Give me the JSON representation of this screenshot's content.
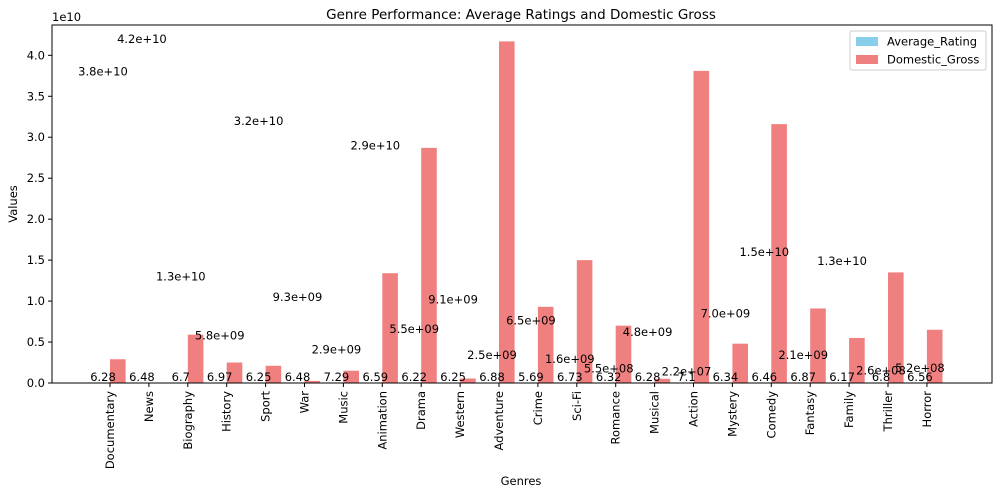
{
  "chart_data": {
    "type": "bar",
    "title": "Genre Performance: Average Ratings and Domestic Gross",
    "xlabel": "Genres",
    "ylabel": "Values",
    "y_offset_label": "1e10",
    "ylim": [
      0,
      43700000000.0
    ],
    "yticks": [
      "0.0",
      "0.5",
      "1.0",
      "1.5",
      "2.0",
      "2.5",
      "3.0",
      "3.5",
      "4.0"
    ],
    "legend_position": "top-right",
    "categories": [
      "Documentary",
      "News",
      "Biography",
      "History",
      "Sport",
      "War",
      "Music",
      "Animation",
      "Drama",
      "Western",
      "Adventure",
      "Crime",
      "Sci-Fi",
      "Romance",
      "Musical",
      "Action",
      "Mystery",
      "Comedy",
      "Fantasy",
      "Family",
      "Thriller",
      "Horror"
    ],
    "series": [
      {
        "name": "Average_Rating",
        "color": "#87ceeb",
        "values": [
          6.28,
          6.48,
          6.7,
          6.97,
          6.25,
          6.48,
          7.29,
          6.59,
          6.22,
          6.25,
          6.88,
          5.69,
          6.73,
          6.32,
          6.28,
          7.1,
          6.34,
          6.46,
          6.87,
          6.17,
          6.8,
          6.56
        ],
        "labels": [
          "6.28",
          "6.48",
          "6.7",
          "6.97",
          "6.25",
          "6.48",
          "7.29",
          "6.59",
          "6.22",
          "6.25",
          "6.88",
          "5.69",
          "6.73",
          "6.32",
          "6.28",
          "7.1",
          "6.34",
          "6.46",
          "6.87",
          "6.17",
          "6.8",
          "6.56"
        ]
      },
      {
        "name": "Domestic_Gross",
        "color": "#f08080",
        "values": [
          2900000000.0,
          10000000.0,
          5900000000.0,
          2500000000.0,
          2100000000.0,
          260000000.0,
          1500000000.0,
          13400000000.0,
          28700000000.0,
          550000000.0,
          41700000000.0,
          9300000000.0,
          15000000000.0,
          7000000000.0,
          520000000.0,
          38100000000.0,
          4800000000.0,
          31600000000.0,
          9100000000.0,
          5500000000.0,
          13500000000.0,
          6500000000.0
        ]
      }
    ],
    "annotations": [
      {
        "text": "3.8e+10",
        "x": 0,
        "y": 38000000000.0
      },
      {
        "text": "4.2e+10",
        "x": 1,
        "y": 42000000000.0
      },
      {
        "text": "1.3e+10",
        "x": 2,
        "y": 13000000000.0
      },
      {
        "text": "5.8e+09",
        "x": 3,
        "y": 5800000000.0
      },
      {
        "text": "3.2e+10",
        "x": 4,
        "y": 32000000000.0
      },
      {
        "text": "9.3e+09",
        "x": 5,
        "y": 10500000000.0
      },
      {
        "text": "2.9e+09",
        "x": 6,
        "y": 4100000000.0
      },
      {
        "text": "2.9e+10",
        "x": 7,
        "y": 29000000000.0
      },
      {
        "text": "5.5e+09",
        "x": 8,
        "y": 6600000000.0
      },
      {
        "text": "9.1e+09",
        "x": 9,
        "y": 10200000000.0
      },
      {
        "text": "2.5e+09",
        "x": 10,
        "y": 3400000000.0
      },
      {
        "text": "6.5e+09",
        "x": 11,
        "y": 7600000000.0
      },
      {
        "text": "1.6e+09",
        "x": 12,
        "y": 2900000000.0
      },
      {
        "text": "5.5e+08",
        "x": 13,
        "y": 1800000000.0
      },
      {
        "text": "4.8e+09",
        "x": 14,
        "y": 6200000000.0
      },
      {
        "text": "2.2e+07",
        "x": 15,
        "y": 1400000000.0
      },
      {
        "text": "7.0e+09",
        "x": 16,
        "y": 8500000000.0
      },
      {
        "text": "1.5e+10",
        "x": 17,
        "y": 16000000000.0
      },
      {
        "text": "2.1e+09",
        "x": 18,
        "y": 3400000000.0
      },
      {
        "text": "1.3e+10",
        "x": 19,
        "y": 14900000000.0
      },
      {
        "text": "2.6e+08",
        "x": 20,
        "y": 1550000000.0
      },
      {
        "text": "5.2e+08",
        "x": 21,
        "y": 1850000000.0
      }
    ]
  }
}
